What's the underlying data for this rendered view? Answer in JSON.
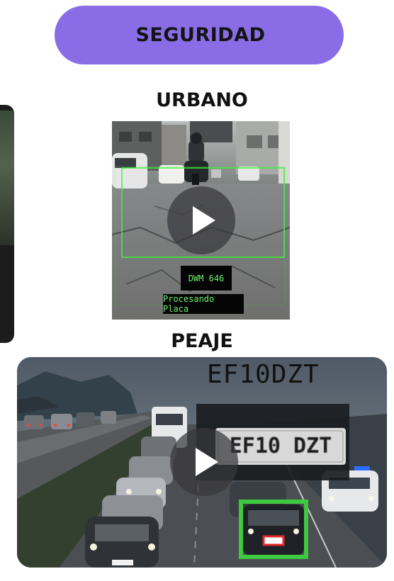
{
  "header": {
    "title": "SEGURIDAD",
    "color": "#8a6de6"
  },
  "sections": [
    {
      "title": "URBANO",
      "video": {
        "plate_text": "DWM 646",
        "status_text": "Procesando Placa",
        "overlay_color": "#3df23d"
      }
    },
    {
      "title": "PEAJE",
      "video": {
        "plate_readout": "EF10DZT",
        "plate_crop_text": "EF10 DZT",
        "detection_color": "#3ec93e"
      }
    }
  ],
  "icons": {
    "play": "play-icon"
  }
}
